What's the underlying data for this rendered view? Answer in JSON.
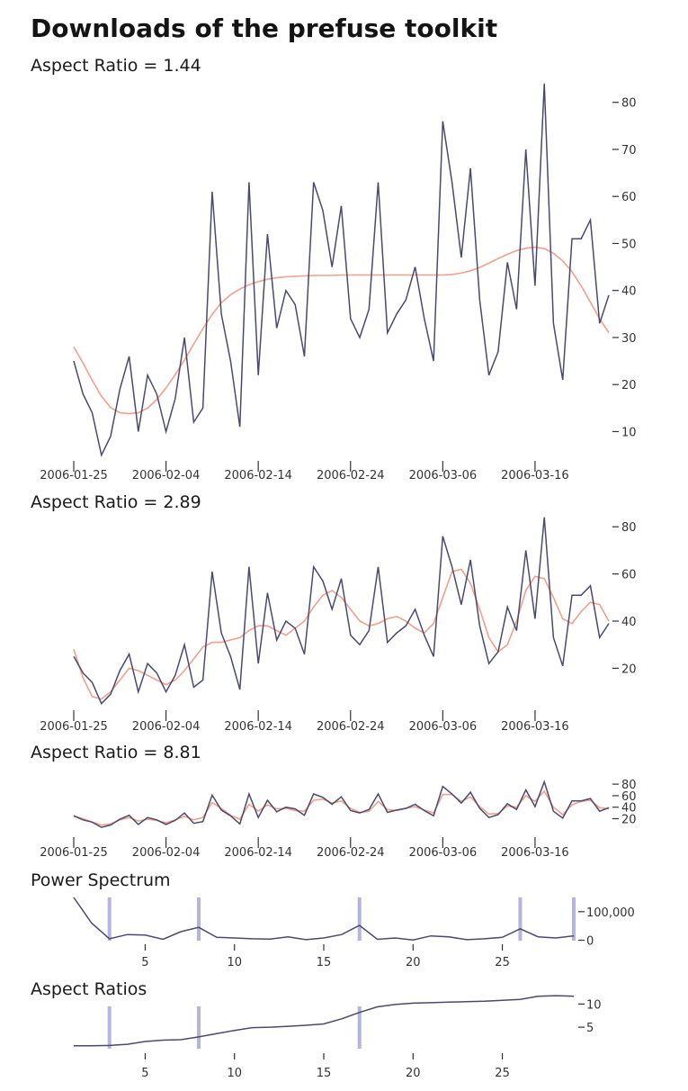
{
  "title": "Downloads of the prefuse toolkit",
  "colors": {
    "raw": "#4a4a6e",
    "smooth": "#f0a08c",
    "marker": "#b4b4dc"
  },
  "chart_data": [
    {
      "type": "line",
      "title": "Aspect Ratio = 1.44",
      "x_tick_labels": [
        "2006-01-25",
        "2006-02-04",
        "2006-02-14",
        "2006-02-24",
        "2006-03-06",
        "2006-03-16"
      ],
      "y_tick_labels": [
        "80",
        "70",
        "60",
        "50",
        "40",
        "30",
        "20",
        "10"
      ],
      "ylim": [
        3,
        85
      ],
      "series": [
        {
          "values": [
            25,
            18,
            14,
            5,
            9,
            19,
            26,
            10,
            22,
            18,
            10,
            17,
            30,
            12,
            15,
            61,
            35,
            25,
            11,
            63,
            22,
            52,
            32,
            40,
            37,
            26,
            63,
            57,
            45,
            58,
            34,
            30,
            36,
            63,
            31,
            35,
            38,
            45,
            34,
            25,
            76,
            63,
            47,
            66,
            38,
            22,
            27,
            46,
            36,
            70,
            41,
            84,
            33,
            21,
            51,
            51,
            55,
            33,
            39
          ]
        },
        {
          "values": [
            28,
            24.6,
            20.9,
            17.5,
            15.1,
            14,
            13.8,
            14,
            15,
            16.8,
            19.3,
            22.1,
            25.2,
            28.6,
            31.9,
            34.9,
            37.4,
            39.1,
            40.3,
            41.2,
            41.9,
            42.4,
            42.7,
            42.9,
            43,
            43.1,
            43.2,
            43.2,
            43.2,
            43.3,
            43.3,
            43.3,
            43.3,
            43.3,
            43.3,
            43.3,
            43.3,
            43.3,
            43.3,
            43.3,
            43.3,
            43.4,
            43.7,
            44.2,
            44.9,
            45.8,
            46.8,
            47.7,
            48.5,
            49,
            49.2,
            48.9,
            47.9,
            46.3,
            44,
            41,
            37.5,
            34,
            31
          ]
        }
      ]
    },
    {
      "type": "line",
      "title": "Aspect Ratio = 2.89",
      "x_tick_labels": [
        "2006-01-25",
        "2006-02-04",
        "2006-02-14",
        "2006-02-24",
        "2006-03-06",
        "2006-03-16"
      ],
      "y_tick_labels": [
        "80",
        "60",
        "40",
        "20"
      ],
      "ylim": [
        3,
        85
      ],
      "series": [
        {
          "values": [
            25,
            18,
            14,
            5,
            9,
            19,
            26,
            10,
            22,
            18,
            10,
            17,
            30,
            12,
            15,
            61,
            35,
            25,
            11,
            63,
            22,
            52,
            32,
            40,
            37,
            26,
            63,
            57,
            45,
            58,
            34,
            30,
            36,
            63,
            31,
            35,
            38,
            45,
            34,
            25,
            76,
            63,
            47,
            66,
            38,
            22,
            27,
            46,
            36,
            70,
            41,
            84,
            33,
            21,
            51,
            51,
            55,
            33,
            39
          ]
        },
        {
          "values": [
            28,
            16,
            8,
            7,
            10,
            15,
            20,
            19,
            17,
            15,
            13,
            15,
            19,
            24,
            29,
            31,
            31,
            32,
            33,
            36,
            38,
            38,
            36,
            34,
            37,
            40,
            46,
            51,
            53,
            50,
            45,
            40,
            38,
            39,
            41,
            42,
            40,
            37,
            35,
            39,
            50,
            61,
            62,
            56,
            45,
            33,
            27,
            30,
            40,
            53,
            59,
            58,
            50,
            41,
            39,
            44,
            48,
            47,
            40
          ]
        }
      ]
    },
    {
      "type": "line",
      "title": "Aspect Ratio = 8.81",
      "x_tick_labels": [
        "2006-01-25",
        "2006-02-04",
        "2006-02-14",
        "2006-02-24",
        "2006-03-06",
        "2006-03-16"
      ],
      "y_tick_labels": [
        "80",
        "60",
        "40",
        "20"
      ],
      "ylim": [
        3,
        85
      ],
      "series": [
        {
          "values": [
            25,
            18,
            14,
            5,
            9,
            19,
            26,
            10,
            22,
            18,
            10,
            17,
            30,
            12,
            15,
            61,
            35,
            25,
            11,
            63,
            22,
            52,
            32,
            40,
            37,
            26,
            63,
            57,
            45,
            58,
            34,
            30,
            36,
            63,
            31,
            35,
            38,
            45,
            34,
            25,
            76,
            63,
            47,
            66,
            38,
            22,
            27,
            46,
            36,
            70,
            41,
            84,
            33,
            21,
            51,
            51,
            55,
            33,
            39
          ]
        },
        {
          "values": [
            25,
            20,
            14,
            9,
            11,
            18,
            22,
            16,
            19,
            17,
            13,
            18,
            24,
            18,
            22,
            48,
            38,
            26,
            19,
            45,
            33,
            44,
            37,
            38,
            34,
            33,
            52,
            54,
            47,
            51,
            38,
            31,
            33,
            50,
            36,
            34,
            38,
            41,
            35,
            30,
            62,
            62,
            50,
            58,
            41,
            28,
            29,
            42,
            40,
            60,
            50,
            68,
            40,
            27,
            44,
            50,
            52,
            39,
            37
          ]
        }
      ]
    },
    {
      "type": "line",
      "title": "Power Spectrum",
      "x": [
        1,
        2,
        3,
        4,
        5,
        6,
        7,
        8,
        9,
        10,
        11,
        12,
        13,
        14,
        15,
        16,
        17,
        18,
        19,
        20,
        21,
        22,
        23,
        24,
        25,
        26,
        27,
        28,
        29
      ],
      "x_tick_labels": [
        "5",
        "10",
        "15",
        "20",
        "25"
      ],
      "x_tick_values": [
        5,
        10,
        15,
        20,
        25
      ],
      "y_tick_labels": [
        "100,000",
        "0"
      ],
      "y_tick_values": [
        100000,
        0
      ],
      "ylim": [
        0,
        150000
      ],
      "series": [
        {
          "values": [
            150000,
            60000,
            5000,
            20000,
            18000,
            3000,
            30000,
            45000,
            10000,
            8000,
            5000,
            4000,
            12000,
            2000,
            8000,
            20000,
            52000,
            3000,
            8000,
            1000,
            15000,
            12000,
            2000,
            5000,
            10000,
            40000,
            12000,
            8000,
            15000
          ]
        }
      ],
      "markers": [
        3,
        8,
        17,
        26,
        29
      ]
    },
    {
      "type": "line",
      "title": "Aspect Ratios",
      "x": [
        1,
        2,
        3,
        4,
        5,
        6,
        7,
        8,
        9,
        10,
        11,
        12,
        13,
        14,
        15,
        16,
        17,
        18,
        19,
        20,
        21,
        22,
        23,
        24,
        25,
        26,
        27,
        28,
        29
      ],
      "x_tick_labels": [
        "5",
        "10",
        "15",
        "20",
        "25"
      ],
      "x_tick_values": [
        5,
        10,
        15,
        20,
        25
      ],
      "y_tick_labels": [
        "10",
        "5"
      ],
      "y_tick_values": [
        10,
        5
      ],
      "ylim": [
        1,
        12.5
      ],
      "series": [
        {
          "values": [
            1.0,
            1.0,
            1.05,
            1.3,
            1.9,
            2.2,
            2.3,
            2.9,
            3.6,
            4.3,
            4.9,
            5.0,
            5.2,
            5.4,
            5.7,
            6.8,
            8.2,
            9.4,
            9.9,
            10.2,
            10.3,
            10.4,
            10.5,
            10.6,
            10.8,
            11.0,
            11.7,
            11.8,
            11.7
          ]
        }
      ],
      "markers": [
        3,
        8,
        17
      ]
    }
  ]
}
